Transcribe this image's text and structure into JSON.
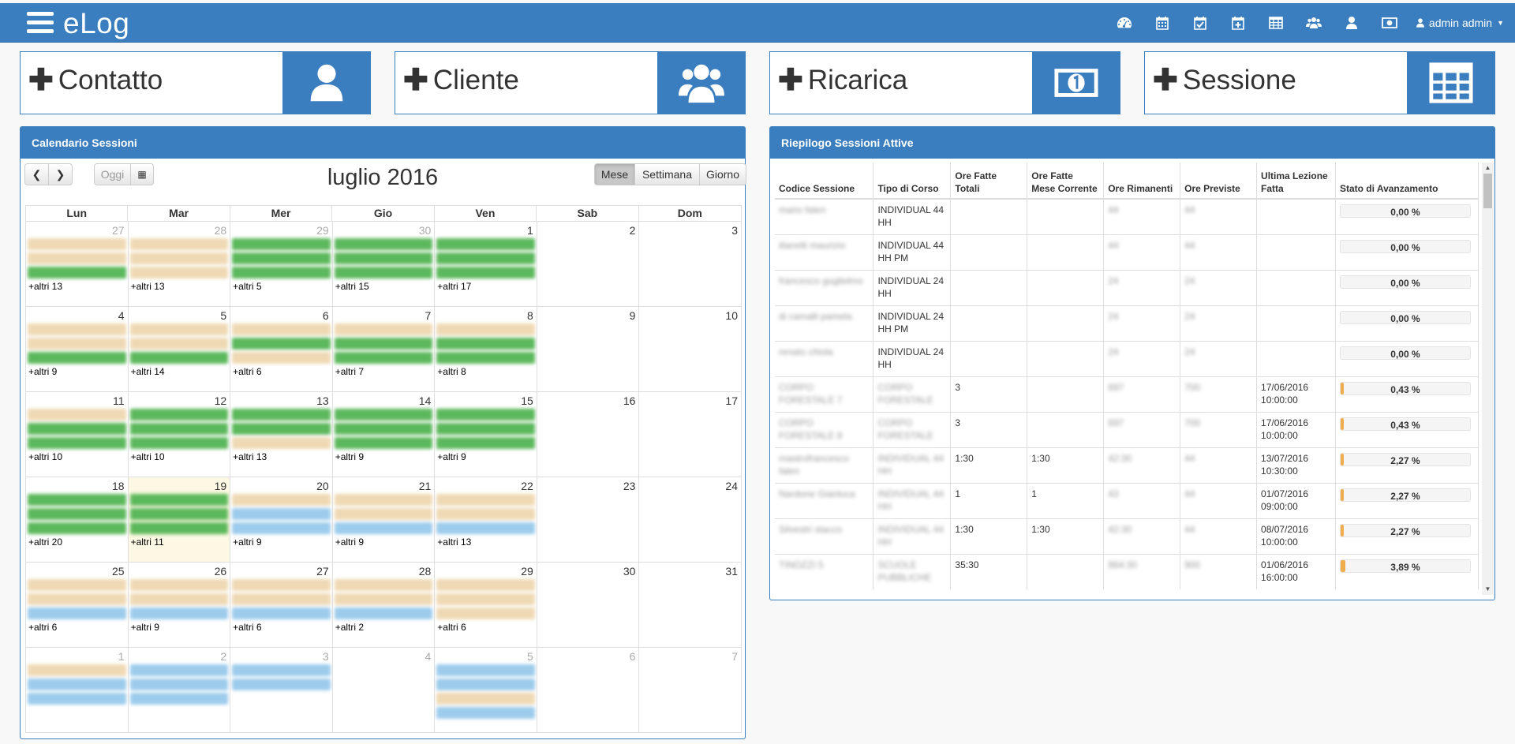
{
  "app": {
    "brand": "eLog",
    "user": "admin admin"
  },
  "nav_icons": [
    "dashboard-icon",
    "calendar-icon",
    "calendar-check-icon",
    "calendar-plus-icon",
    "table-icon",
    "users-icon",
    "user-icon",
    "money-icon"
  ],
  "tiles": [
    {
      "label": "Contatto",
      "icon": "user-icon"
    },
    {
      "label": "Cliente",
      "icon": "users-icon"
    },
    {
      "label": "Ricarica",
      "icon": "money-icon"
    },
    {
      "label": "Sessione",
      "icon": "table-icon"
    }
  ],
  "calendar": {
    "panel_title": "Calendario Sessioni",
    "title": "luglio 2016",
    "today_label": "Oggi",
    "views": [
      "Mese",
      "Settimana",
      "Giorno"
    ],
    "active_view": "Mese",
    "weekdays": [
      "Lun",
      "Mar",
      "Mer",
      "Gio",
      "Ven",
      "Sab",
      "Dom"
    ],
    "weeks": [
      [
        {
          "d": "27",
          "o": true,
          "ev": "ttg",
          "more": "+altri 13"
        },
        {
          "d": "28",
          "o": true,
          "ev": "ttt",
          "more": "+altri 13"
        },
        {
          "d": "29",
          "o": true,
          "ev": "ggg",
          "more": "+altri 5"
        },
        {
          "d": "30",
          "o": true,
          "ev": "ggg",
          "more": "+altri 15"
        },
        {
          "d": "1",
          "ev": "ggg",
          "more": "+altri 17"
        },
        {
          "d": "2"
        },
        {
          "d": "3"
        }
      ],
      [
        {
          "d": "4",
          "ev": "ttg",
          "more": "+altri 9"
        },
        {
          "d": "5",
          "ev": "ttg",
          "more": "+altri 14"
        },
        {
          "d": "6",
          "ev": "tgt",
          "more": "+altri 6"
        },
        {
          "d": "7",
          "ev": "tgg",
          "more": "+altri 7"
        },
        {
          "d": "8",
          "ev": "tgg",
          "more": "+altri 8"
        },
        {
          "d": "9"
        },
        {
          "d": "10"
        }
      ],
      [
        {
          "d": "11",
          "ev": "tgg",
          "more": "+altri 10"
        },
        {
          "d": "12",
          "ev": "ggg",
          "more": "+altri 10"
        },
        {
          "d": "13",
          "ev": "ggt",
          "more": "+altri 13"
        },
        {
          "d": "14",
          "ev": "ggg",
          "more": "+altri 9"
        },
        {
          "d": "15",
          "ev": "ggg",
          "more": "+altri 9"
        },
        {
          "d": "16"
        },
        {
          "d": "17"
        }
      ],
      [
        {
          "d": "18",
          "ev": "ggg",
          "more": "+altri 20"
        },
        {
          "d": "19",
          "t": true,
          "ev": "ggg",
          "more": "+altri 11"
        },
        {
          "d": "20",
          "ev": "tbb",
          "more": "+altri 9"
        },
        {
          "d": "21",
          "ev": "ttb",
          "more": "+altri 9"
        },
        {
          "d": "22",
          "ev": "ttb",
          "more": "+altri 13"
        },
        {
          "d": "23"
        },
        {
          "d": "24"
        }
      ],
      [
        {
          "d": "25",
          "ev": "ttb",
          "more": "+altri 6"
        },
        {
          "d": "26",
          "ev": "ttb",
          "more": "+altri 9"
        },
        {
          "d": "27",
          "ev": "ttb",
          "more": "+altri 6"
        },
        {
          "d": "28",
          "ev": "ttb",
          "more": "+altri 2"
        },
        {
          "d": "29",
          "ev": "ttt",
          "more": "+altri 6"
        },
        {
          "d": "30"
        },
        {
          "d": "31"
        }
      ],
      [
        {
          "d": "1",
          "o": true,
          "ev": "tbb"
        },
        {
          "d": "2",
          "o": true,
          "ev": "bbb"
        },
        {
          "d": "3",
          "o": true,
          "ev": "bb"
        },
        {
          "d": "4",
          "o": true
        },
        {
          "d": "5",
          "o": true,
          "ev": "bbtb"
        },
        {
          "d": "6",
          "o": true
        },
        {
          "d": "7",
          "o": true
        }
      ]
    ]
  },
  "summary": {
    "panel_title": "Riepilogo Sessioni Attive",
    "headers": [
      "Codice Sessione",
      "Tipo di Corso",
      "Ore Fatte Totali",
      "Ore Fatte Mese Corrente",
      "Ore Rimanenti",
      "Ore Previste",
      "Ultima Lezione Fatta",
      "Stato di Avanzamento"
    ],
    "rows": [
      {
        "code": "mario falen",
        "tipo": "INDIVIDUAL 44 HH",
        "totali": "",
        "mese": "",
        "rimanenti": "44",
        "previste": "44",
        "ultima": "",
        "progress": 0.0,
        "progress_label": "0,00 %"
      },
      {
        "code": "ilianelli maurizio",
        "tipo": "INDIVIDUAL 44 HH PM",
        "totali": "",
        "mese": "",
        "rimanenti": "44",
        "previste": "44",
        "ultima": "",
        "progress": 0.0,
        "progress_label": "0,00 %"
      },
      {
        "code": "francesco guglielmo",
        "tipo": "INDIVIDUAL 24 HH",
        "totali": "",
        "mese": "",
        "rimanenti": "24",
        "previste": "24",
        "ultima": "",
        "progress": 0.0,
        "progress_label": "0,00 %"
      },
      {
        "code": "di camalli pamela",
        "tipo": "INDIVIDUAL 24 HH PM",
        "totali": "",
        "mese": "",
        "rimanenti": "24",
        "previste": "24",
        "ultima": "",
        "progress": 0.0,
        "progress_label": "0,00 %"
      },
      {
        "code": "renato chiola",
        "tipo": "INDIVIDUAL 24 HH",
        "totali": "",
        "mese": "",
        "rimanenti": "24",
        "previste": "24",
        "ultima": "",
        "progress": 0.0,
        "progress_label": "0,00 %"
      },
      {
        "code": "CORPO FORESTALE 7",
        "tipo": "CORPO FORESTALE",
        "tipo_blur": true,
        "totali": "3",
        "mese": "",
        "rimanenti": "697",
        "previste": "700",
        "ultima": "17/06/2016 10:00:00",
        "progress": 0.43,
        "progress_label": "0,43 %"
      },
      {
        "code": "CORPO FORESTALE 8",
        "tipo": "CORPO FORESTALE",
        "tipo_blur": true,
        "totali": "3",
        "mese": "",
        "rimanenti": "697",
        "previste": "700",
        "ultima": "17/06/2016 10:00:00",
        "progress": 0.43,
        "progress_label": "0,43 %"
      },
      {
        "code": "mastrofrancesco falen",
        "tipo": "INDIVIDUAL 44 HH",
        "tipo_blur": true,
        "totali": "1:30",
        "mese": "1:30",
        "rimanenti": "42:30",
        "previste": "44",
        "ultima": "13/07/2016 10:30:00",
        "progress": 2.27,
        "progress_label": "2,27 %"
      },
      {
        "code": "Nardone Gianluca",
        "tipo": "INDIVIDUAL 44 HH",
        "tipo_blur": true,
        "totali": "1",
        "mese": "1",
        "rimanenti": "43",
        "previste": "44",
        "ultima": "01/07/2016 09:00:00",
        "progress": 2.27,
        "progress_label": "2,27 %"
      },
      {
        "code": "Silvestri stacco",
        "tipo": "INDIVIDUAL 44 HH",
        "tipo_blur": true,
        "totali": "1:30",
        "mese": "1:30",
        "rimanenti": "42:30",
        "previste": "44",
        "ultima": "08/07/2016 10:00:00",
        "progress": 2.27,
        "progress_label": "2,27 %"
      },
      {
        "code": "TINOZZI 5",
        "tipo": "SCUOLE PUBBLICHE",
        "tipo_blur": true,
        "totali": "35:30",
        "mese": "",
        "rimanenti": "864:30",
        "previste": "900",
        "ultima": "01/06/2016 16:00:00",
        "progress": 3.89,
        "progress_label": "3,89 %"
      }
    ]
  }
}
